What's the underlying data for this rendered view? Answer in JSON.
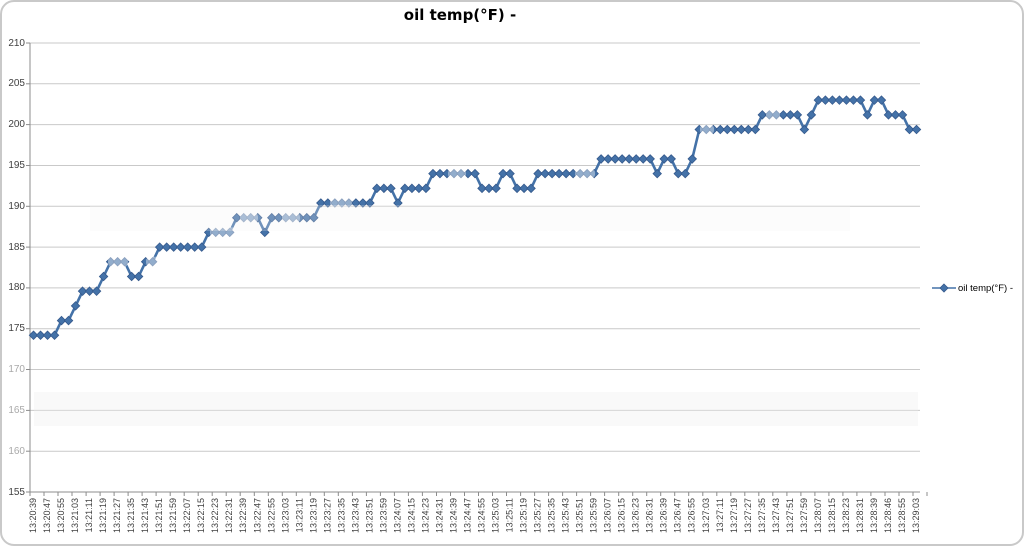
{
  "chart_data": {
    "type": "line",
    "title": "oil temp(°F) -",
    "legend_position": "right",
    "grid": true,
    "marker": "diamond",
    "ylim": [
      155,
      210
    ],
    "yticks": [
      155,
      160,
      165,
      170,
      175,
      180,
      185,
      190,
      195,
      200,
      205,
      210
    ],
    "faded_yticks": [
      160,
      165,
      170
    ],
    "x_label_every_n_points": 2,
    "x_labels": [
      "13:20:39",
      "13:20:47",
      "13:20:55",
      "13:21:03",
      "13:21:11",
      "13:21:19",
      "13:21:27",
      "13:21:35",
      "13:21:43",
      "13:21:51",
      "13:21:59",
      "13:22:07",
      "13:22:15",
      "13:22:23",
      "13:22:31",
      "13:22:39",
      "13:22:47",
      "13:22:55",
      "13:23:03",
      "13:23:11",
      "13:23:19",
      "13:23:27",
      "13:23:35",
      "13:23:43",
      "13:23:51",
      "13:23:59",
      "13:24:07",
      "13:24:15",
      "13:24:23",
      "13:24:31",
      "13:24:39",
      "13:24:47",
      "13:24:55",
      "13:25:03",
      "13:25:11",
      "13:25:19",
      "13:25:27",
      "13:25:35",
      "13:25:43",
      "13:25:51",
      "13:25:59",
      "13:26:07",
      "13:26:15",
      "13:26:23",
      "13:26:31",
      "13:26:39",
      "13:26:47",
      "13:26:55",
      "13:27:03",
      "13:27:11",
      "13:27:19",
      "13:27:27",
      "13:27:35",
      "13:27:43",
      "13:27:51",
      "13:27:59",
      "13:28:07",
      "13:28:15",
      "13:28:23",
      "13:28:31",
      "13:28:39",
      "13:28:46",
      "13:28:55",
      "13:29:03"
    ],
    "series": [
      {
        "name": "oil temp(°F) -",
        "color": "#4472a8",
        "marker_edge_color": "#35598c",
        "values": [
          174.2,
          174.2,
          174.2,
          174.2,
          176,
          176,
          177.8,
          179.6,
          179.6,
          179.6,
          181.4,
          183.2,
          183.2,
          183.2,
          181.4,
          181.4,
          183.2,
          183.2,
          185,
          185,
          185,
          185,
          185,
          185,
          185,
          186.8,
          186.8,
          186.8,
          186.8,
          188.6,
          188.6,
          188.6,
          188.6,
          186.8,
          188.6,
          188.6,
          188.6,
          188.6,
          188.6,
          188.6,
          188.6,
          190.4,
          190.4,
          190.4,
          190.4,
          190.4,
          190.4,
          190.4,
          190.4,
          192.2,
          192.2,
          192.2,
          190.4,
          192.2,
          192.2,
          192.2,
          192.2,
          194,
          194,
          194,
          194,
          194,
          194,
          194,
          192.2,
          192.2,
          192.2,
          194,
          194,
          192.2,
          192.2,
          192.2,
          194,
          194,
          194,
          194,
          194,
          194,
          194,
          194,
          194,
          195.8,
          195.8,
          195.8,
          195.8,
          195.8,
          195.8,
          195.8,
          195.8,
          194,
          195.8,
          195.8,
          194,
          194,
          195.8,
          199.4,
          199.4,
          199.4,
          199.4,
          199.4,
          199.4,
          199.4,
          199.4,
          199.4,
          201.2,
          201.2,
          201.2,
          201.2,
          201.2,
          201.2,
          199.4,
          201.2,
          203,
          203,
          203,
          203,
          203,
          203,
          203,
          201.2,
          203,
          203,
          201.2,
          201.2,
          201.2,
          199.4,
          199.4
        ]
      }
    ],
    "grid_color": "#c9c9c9",
    "axis_color": "#8c8c8c",
    "label_color": "#3f3f3f",
    "faded_label_color": "#a9a9a9"
  }
}
